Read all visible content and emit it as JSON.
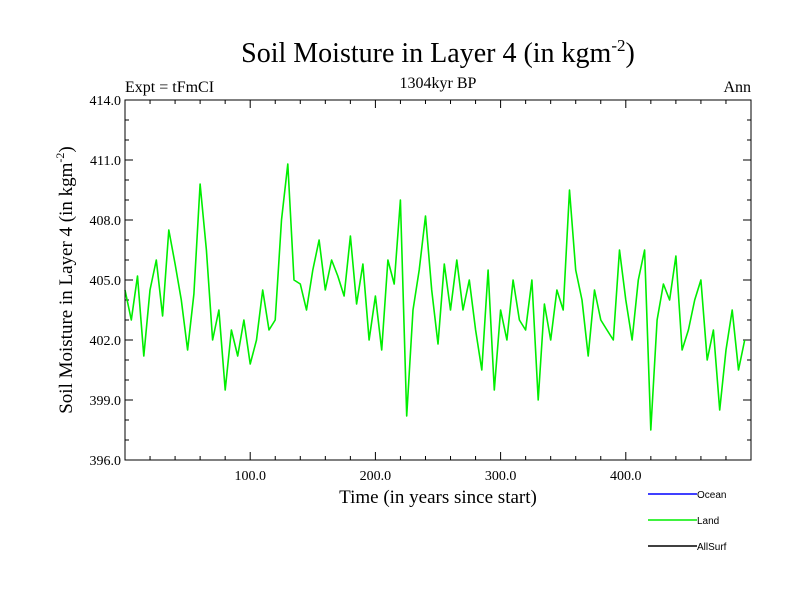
{
  "chart_data": {
    "type": "line",
    "title_main": "Soil Moisture in Layer 4 (in kgm",
    "title_sup": "-2",
    "title_close": ")",
    "subtitle": "1304kyr BP",
    "top_left": "Expt = tFmCI",
    "top_right": "Ann",
    "ylabel_main": "Soil Moisture in Layer 4 (in kgm",
    "ylabel_sup": "-2",
    "ylabel_close": ")",
    "xlabel": "Time (in years since start)",
    "xlim": [
      0,
      500
    ],
    "ylim": [
      396,
      414
    ],
    "x_ticks": [
      100,
      200,
      300,
      400
    ],
    "x_tick_labels": [
      "100.0",
      "200.0",
      "300.0",
      "400.0"
    ],
    "y_ticks": [
      396,
      399,
      402,
      405,
      408,
      411,
      414
    ],
    "y_tick_labels": [
      "396.0",
      "399.0",
      "402.0",
      "405.0",
      "408.0",
      "411.0",
      "414.0"
    ],
    "series": [
      {
        "name": "Land",
        "color": "#00ee00",
        "x_start": 0,
        "x_step": 5,
        "values": [
          404.5,
          403.0,
          405.2,
          401.2,
          404.5,
          406.0,
          403.2,
          407.5,
          405.8,
          404.0,
          401.5,
          404.3,
          409.8,
          406.5,
          402.0,
          403.5,
          399.5,
          402.5,
          401.2,
          403.0,
          400.8,
          402.0,
          404.5,
          402.5,
          403.0,
          408.0,
          410.8,
          405.0,
          404.8,
          403.5,
          405.5,
          407.0,
          404.5,
          406.0,
          405.2,
          404.2,
          407.2,
          403.8,
          405.8,
          402.0,
          404.2,
          401.5,
          406.0,
          404.8,
          409.0,
          398.2,
          403.5,
          405.5,
          408.2,
          404.5,
          401.8,
          405.8,
          403.5,
          406.0,
          403.5,
          405.0,
          402.5,
          400.5,
          405.5,
          399.5,
          403.5,
          402.0,
          405.0,
          403.0,
          402.5,
          405.0,
          399.0,
          403.8,
          402.0,
          404.5,
          403.5,
          409.5,
          405.5,
          404.0,
          401.2,
          404.5,
          403.0,
          402.5,
          402.0,
          406.5,
          404.0,
          402.0,
          405.0,
          406.5,
          397.5,
          403.0,
          404.8,
          404.0,
          406.2,
          401.5,
          402.5,
          404.0,
          405.0,
          401.0,
          402.5,
          398.5,
          401.5,
          403.5,
          400.5,
          402.0
        ]
      }
    ],
    "legend": [
      {
        "label": "Ocean",
        "color": "#0000ff"
      },
      {
        "label": "Land",
        "color": "#00ee00"
      },
      {
        "label": "AllSurf",
        "color": "#000000"
      }
    ]
  }
}
